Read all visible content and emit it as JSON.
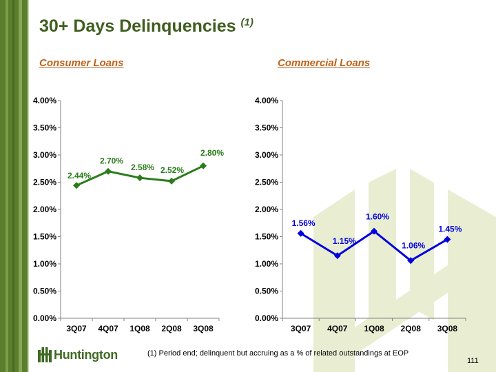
{
  "page": {
    "title": "30+ Days Delinquencies",
    "title_note": "(1)",
    "footnote": "(1) Period end; delinquent but accruing as a % of related outstandings at EOP",
    "page_number": "111",
    "logo_text": "Huntington",
    "colors": {
      "brand_green": "#3f5e1f",
      "section_orange": "#c0621a",
      "consumer_line": "#2a7d1a",
      "commercial_line": "#0000e0"
    }
  },
  "chart_data": [
    {
      "type": "line",
      "title": "Consumer Loans",
      "categories": [
        "3Q07",
        "4Q07",
        "1Q08",
        "2Q08",
        "3Q08"
      ],
      "series": [
        {
          "values": [
            2.44,
            2.7,
            2.58,
            2.52,
            2.8
          ]
        }
      ],
      "data_labels": [
        "2.44%",
        "2.70%",
        "2.58%",
        "2.52%",
        "2.80%"
      ],
      "yticks": [
        "0.00%",
        "0.50%",
        "1.00%",
        "1.50%",
        "2.00%",
        "2.50%",
        "3.00%",
        "3.50%",
        "4.00%"
      ],
      "ylim": [
        0,
        4
      ],
      "grid": false,
      "color": "#2a7d1a"
    },
    {
      "type": "line",
      "title": "Commercial Loans",
      "categories": [
        "3Q07",
        "4Q07",
        "1Q08",
        "2Q08",
        "3Q08"
      ],
      "series": [
        {
          "values": [
            1.56,
            1.15,
            1.6,
            1.06,
            1.45
          ]
        }
      ],
      "data_labels": [
        "1.56%",
        "1.15%",
        "1.60%",
        "1.06%",
        "1.45%"
      ],
      "yticks": [
        "0.00%",
        "0.50%",
        "1.00%",
        "1.50%",
        "2.00%",
        "2.50%",
        "3.00%",
        "3.50%",
        "4.00%"
      ],
      "ylim": [
        0,
        4
      ],
      "grid": false,
      "color": "#0000e0"
    }
  ]
}
